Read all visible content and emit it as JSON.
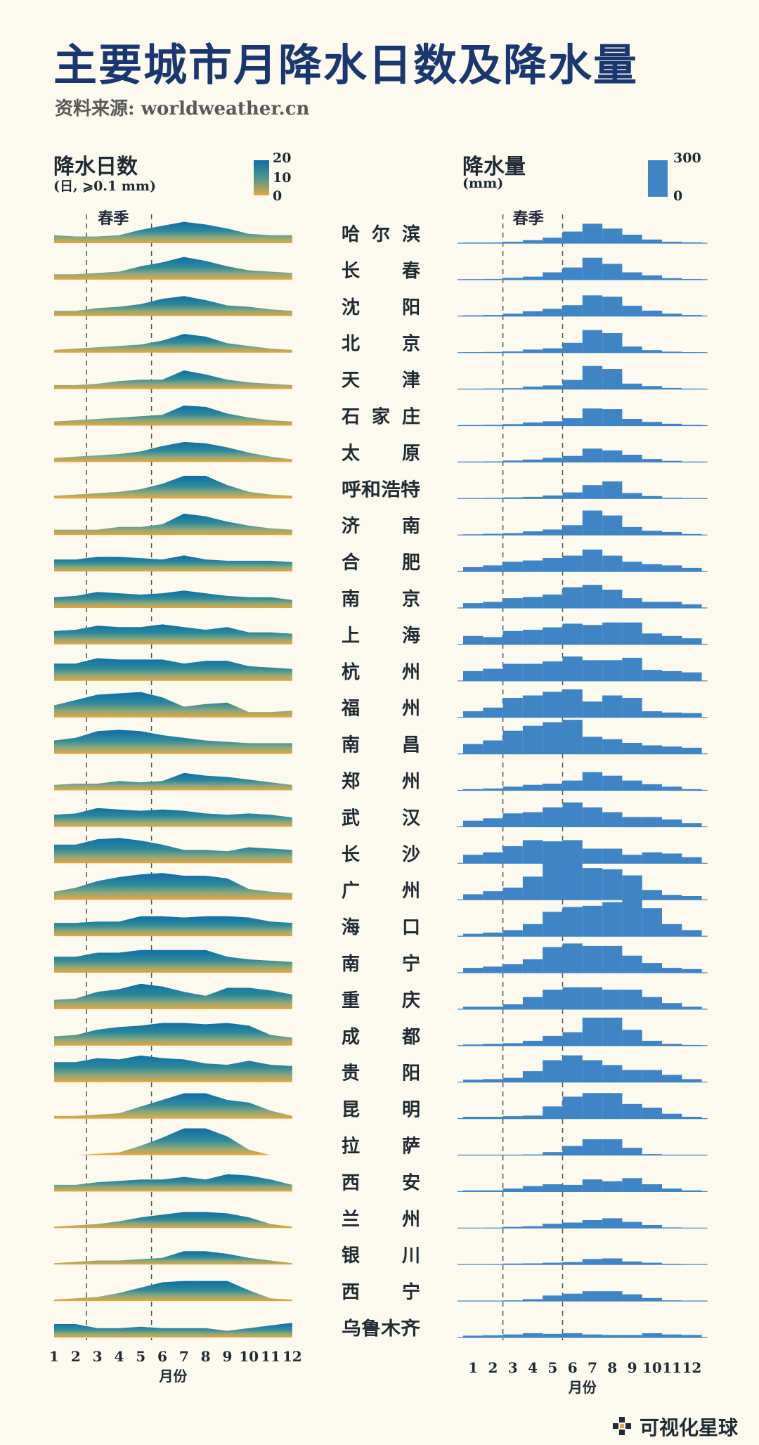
{
  "title": "主要城市月降水日数及降水量",
  "source": "资料来源: worldweather.cn",
  "left_panel": {
    "title": "降水日数",
    "subtitle": "(日, ⩾0.1 mm)",
    "legend_labels": [
      "20",
      "10",
      "0"
    ]
  },
  "right_panel": {
    "title": "降水量",
    "subtitle": "(mm)",
    "legend_labels": [
      "300",
      "0"
    ]
  },
  "spring_label": "春季",
  "x_ticks": [
    "1",
    "2",
    "3",
    "4",
    "5",
    "6",
    "7",
    "8",
    "9",
    "10",
    "11",
    "12"
  ],
  "xlabel": "月份",
  "footer": "可视化星球",
  "colors": {
    "accent": "#1a3770",
    "bar": "#3f85c6",
    "grad_top": "#0f6ea8",
    "grad_bottom": "#e3a63c",
    "background": "#fcfaef"
  },
  "chart_data": [
    {
      "type": "area",
      "title": "降水日数",
      "ylabel": "日, ⩾0.1 mm",
      "ylim": [
        0,
        20
      ],
      "x": [
        1,
        2,
        3,
        4,
        5,
        6,
        7,
        8,
        9,
        10,
        11,
        12
      ],
      "series": [
        {
          "name": "哈尔滨",
          "values": [
            6,
            5,
            5,
            6,
            10,
            13,
            16,
            14,
            11,
            7,
            6,
            6
          ]
        },
        {
          "name": "长春",
          "values": [
            4,
            4,
            5,
            6,
            10,
            13,
            17,
            14,
            10,
            7,
            6,
            5
          ]
        },
        {
          "name": "沈阳",
          "values": [
            4,
            4,
            6,
            7,
            9,
            13,
            15,
            12,
            8,
            7,
            5,
            4
          ]
        },
        {
          "name": "北京",
          "values": [
            2,
            3,
            4,
            5,
            6,
            9,
            14,
            12,
            7,
            5,
            3,
            2
          ]
        },
        {
          "name": "天津",
          "values": [
            3,
            3,
            4,
            6,
            7,
            7,
            14,
            11,
            7,
            5,
            4,
            3
          ]
        },
        {
          "name": "石家庄",
          "values": [
            3,
            4,
            5,
            6,
            7,
            8,
            15,
            14,
            9,
            6,
            4,
            3
          ]
        },
        {
          "name": "太原",
          "values": [
            3,
            4,
            5,
            6,
            8,
            12,
            15,
            14,
            11,
            7,
            4,
            2
          ]
        },
        {
          "name": "呼和浩特",
          "values": [
            2,
            3,
            4,
            5,
            7,
            11,
            17,
            17,
            10,
            5,
            3,
            2
          ]
        },
        {
          "name": "济南",
          "values": [
            4,
            4,
            4,
            6,
            6,
            8,
            16,
            14,
            10,
            7,
            5,
            4
          ]
        },
        {
          "name": "合肥",
          "values": [
            9,
            9,
            11,
            11,
            10,
            9,
            12,
            9,
            8,
            8,
            8,
            7
          ]
        },
        {
          "name": "南京",
          "values": [
            8,
            9,
            12,
            11,
            10,
            11,
            13,
            11,
            9,
            8,
            8,
            6
          ]
        },
        {
          "name": "上海",
          "values": [
            10,
            11,
            14,
            13,
            13,
            15,
            13,
            11,
            13,
            9,
            9,
            8
          ]
        },
        {
          "name": "杭州",
          "values": [
            13,
            13,
            17,
            16,
            16,
            16,
            13,
            15,
            15,
            11,
            10,
            9
          ]
        },
        {
          "name": "福州",
          "values": [
            9,
            13,
            17,
            18,
            19,
            15,
            8,
            10,
            11,
            4,
            4,
            5
          ]
        },
        {
          "name": "南昌",
          "values": [
            10,
            12,
            17,
            18,
            17,
            14,
            12,
            10,
            9,
            8,
            8,
            8
          ]
        },
        {
          "name": "郑州",
          "values": [
            4,
            5,
            5,
            7,
            6,
            7,
            13,
            11,
            10,
            8,
            6,
            4
          ]
        },
        {
          "name": "武汉",
          "values": [
            9,
            10,
            14,
            13,
            12,
            13,
            12,
            10,
            9,
            10,
            9,
            7
          ]
        },
        {
          "name": "长沙",
          "values": [
            14,
            14,
            18,
            19,
            17,
            14,
            10,
            10,
            9,
            12,
            11,
            10
          ]
        },
        {
          "name": "广州",
          "values": [
            6,
            9,
            14,
            17,
            19,
            20,
            18,
            18,
            16,
            8,
            6,
            5
          ]
        },
        {
          "name": "海口",
          "values": [
            10,
            10,
            11,
            11,
            15,
            15,
            14,
            15,
            15,
            14,
            11,
            10
          ]
        },
        {
          "name": "南宁",
          "values": [
            12,
            12,
            15,
            15,
            17,
            17,
            17,
            17,
            12,
            10,
            9,
            8
          ]
        },
        {
          "name": "重庆",
          "values": [
            7,
            8,
            13,
            15,
            19,
            17,
            13,
            10,
            16,
            16,
            14,
            11
          ]
        },
        {
          "name": "成都",
          "values": [
            7,
            8,
            12,
            14,
            15,
            17,
            17,
            16,
            17,
            15,
            8,
            6
          ]
        },
        {
          "name": "贵阳",
          "values": [
            15,
            15,
            18,
            17,
            20,
            18,
            17,
            14,
            13,
            16,
            13,
            12
          ]
        },
        {
          "name": "昆明",
          "values": [
            2,
            2,
            3,
            4,
            9,
            14,
            19,
            19,
            14,
            12,
            6,
            2
          ]
        },
        {
          "name": "拉萨",
          "values": [
            0,
            0,
            1,
            2,
            7,
            13,
            20,
            20,
            14,
            4,
            0,
            0
          ]
        },
        {
          "name": "西安",
          "values": [
            5,
            5,
            7,
            8,
            9,
            9,
            11,
            9,
            13,
            12,
            9,
            5
          ]
        },
        {
          "name": "兰州",
          "values": [
            1,
            2,
            3,
            5,
            8,
            10,
            12,
            12,
            11,
            8,
            3,
            1
          ]
        },
        {
          "name": "银川",
          "values": [
            1,
            2,
            3,
            3,
            4,
            5,
            10,
            10,
            8,
            5,
            3,
            1
          ]
        },
        {
          "name": "西宁",
          "values": [
            1,
            2,
            3,
            6,
            10,
            14,
            15,
            15,
            15,
            8,
            2,
            1
          ]
        },
        {
          "name": "乌鲁木齐",
          "values": [
            10,
            10,
            7,
            7,
            8,
            7,
            7,
            7,
            5,
            7,
            9,
            11
          ]
        }
      ]
    },
    {
      "type": "bar",
      "title": "降水量",
      "ylabel": "mm",
      "ylim": [
        0,
        300
      ],
      "x": [
        1,
        2,
        3,
        4,
        5,
        6,
        7,
        8,
        9,
        10,
        11,
        12
      ],
      "series": [
        {
          "name": "哈尔滨",
          "values": [
            5,
            6,
            12,
            25,
            45,
            95,
            160,
            120,
            70,
            30,
            12,
            7
          ]
        },
        {
          "name": "长春",
          "values": [
            4,
            6,
            15,
            25,
            60,
            100,
            180,
            130,
            60,
            35,
            12,
            5
          ]
        },
        {
          "name": "沈阳",
          "values": [
            7,
            10,
            20,
            40,
            60,
            90,
            170,
            160,
            85,
            45,
            20,
            10
          ]
        },
        {
          "name": "北京",
          "values": [
            3,
            5,
            10,
            25,
            35,
            80,
            185,
            160,
            50,
            20,
            8,
            3
          ]
        },
        {
          "name": "天津",
          "values": [
            3,
            5,
            8,
            20,
            30,
            75,
            190,
            165,
            45,
            25,
            10,
            4
          ]
        },
        {
          "name": "石家庄",
          "values": [
            4,
            6,
            12,
            25,
            35,
            60,
            140,
            135,
            55,
            30,
            15,
            5
          ]
        },
        {
          "name": "太原",
          "values": [
            3,
            5,
            12,
            20,
            35,
            50,
            110,
            95,
            60,
            25,
            10,
            3
          ]
        },
        {
          "name": "呼和浩特",
          "values": [
            2,
            4,
            9,
            14,
            25,
            50,
            110,
            140,
            45,
            20,
            6,
            2
          ]
        },
        {
          "name": "济南",
          "values": [
            6,
            10,
            15,
            30,
            45,
            80,
            200,
            160,
            65,
            35,
            25,
            8
          ]
        },
        {
          "name": "合肥",
          "values": [
            35,
            50,
            80,
            90,
            110,
            130,
            180,
            130,
            80,
            60,
            50,
            30
          ]
        },
        {
          "name": "南京",
          "values": [
            40,
            50,
            80,
            90,
            110,
            170,
            190,
            150,
            80,
            50,
            50,
            30
          ]
        },
        {
          "name": "上海",
          "values": [
            70,
            60,
            110,
            120,
            140,
            170,
            160,
            180,
            180,
            90,
            70,
            50
          ]
        },
        {
          "name": "杭州",
          "values": [
            80,
            100,
            140,
            140,
            160,
            200,
            170,
            170,
            190,
            90,
            80,
            70
          ]
        },
        {
          "name": "福州",
          "values": [
            50,
            80,
            160,
            180,
            210,
            230,
            130,
            180,
            160,
            50,
            40,
            35
          ]
        },
        {
          "name": "南昌",
          "values": [
            80,
            110,
            190,
            230,
            260,
            280,
            140,
            120,
            90,
            70,
            60,
            50
          ]
        },
        {
          "name": "郑州",
          "values": [
            10,
            15,
            30,
            45,
            55,
            80,
            150,
            120,
            80,
            50,
            30,
            10
          ]
        },
        {
          "name": "武汉",
          "values": [
            50,
            70,
            110,
            120,
            160,
            200,
            160,
            120,
            80,
            80,
            60,
            30
          ]
        },
        {
          "name": "长沙",
          "values": [
            70,
            90,
            140,
            190,
            180,
            190,
            120,
            120,
            70,
            90,
            80,
            50
          ]
        },
        {
          "name": "广州",
          "values": [
            45,
            70,
            100,
            190,
            300,
            300,
            260,
            250,
            200,
            80,
            40,
            30
          ]
        },
        {
          "name": "海口",
          "values": [
            20,
            30,
            50,
            100,
            200,
            240,
            250,
            280,
            300,
            230,
            100,
            50
          ]
        },
        {
          "name": "南宁",
          "values": [
            40,
            50,
            70,
            110,
            210,
            240,
            220,
            220,
            140,
            80,
            40,
            30
          ]
        },
        {
          "name": "重庆",
          "values": [
            20,
            20,
            40,
            100,
            160,
            180,
            180,
            160,
            160,
            100,
            50,
            20
          ]
        },
        {
          "name": "成都",
          "values": [
            10,
            15,
            20,
            40,
            80,
            110,
            230,
            230,
            130,
            40,
            15,
            5
          ]
        },
        {
          "name": "贵阳",
          "values": [
            20,
            25,
            35,
            90,
            180,
            220,
            180,
            140,
            100,
            100,
            60,
            25
          ]
        },
        {
          "name": "昆明",
          "values": [
            15,
            15,
            20,
            25,
            100,
            180,
            210,
            210,
            120,
            90,
            40,
            15
          ]
        },
        {
          "name": "拉萨",
          "values": [
            1,
            1,
            2,
            5,
            25,
            75,
            130,
            130,
            60,
            8,
            1,
            1
          ]
        },
        {
          "name": "西安",
          "values": [
            10,
            10,
            25,
            45,
            60,
            55,
            100,
            85,
            110,
            60,
            25,
            10
          ]
        },
        {
          "name": "兰州",
          "values": [
            2,
            3,
            10,
            15,
            35,
            45,
            65,
            80,
            50,
            25,
            5,
            2
          ]
        },
        {
          "name": "银川",
          "values": [
            1,
            2,
            8,
            10,
            15,
            20,
            45,
            50,
            25,
            15,
            5,
            1
          ]
        },
        {
          "name": "西宁",
          "values": [
            1,
            2,
            5,
            15,
            45,
            60,
            80,
            80,
            55,
            25,
            5,
            1
          ]
        },
        {
          "name": "乌鲁木齐",
          "values": [
            15,
            18,
            25,
            35,
            30,
            35,
            25,
            20,
            20,
            35,
            25,
            20
          ]
        }
      ]
    }
  ]
}
